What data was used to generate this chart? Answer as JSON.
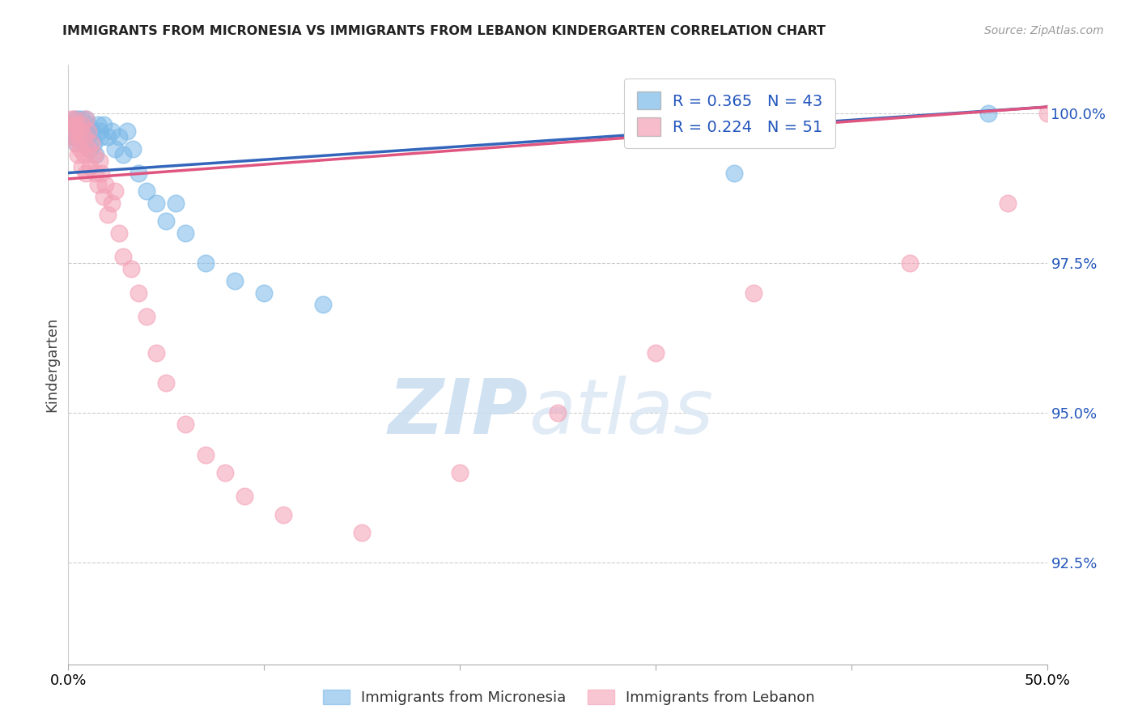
{
  "title": "IMMIGRANTS FROM MICRONESIA VS IMMIGRANTS FROM LEBANON KINDERGARTEN CORRELATION CHART",
  "source": "Source: ZipAtlas.com",
  "ylabel": "Kindergarten",
  "ytick_values": [
    0.925,
    0.95,
    0.975,
    1.0
  ],
  "xlim": [
    0.0,
    0.5
  ],
  "ylim": [
    0.908,
    1.008
  ],
  "blue_color": "#7ab8e8",
  "pink_color": "#f4a0b5",
  "blue_line_color": "#3366bb",
  "pink_line_color": "#e05580",
  "blue_R": 0.365,
  "blue_N": 43,
  "pink_R": 0.224,
  "pink_N": 51,
  "blue_scatter_x": [
    0.001,
    0.002,
    0.003,
    0.003,
    0.004,
    0.004,
    0.005,
    0.005,
    0.006,
    0.007,
    0.007,
    0.008,
    0.008,
    0.009,
    0.01,
    0.01,
    0.011,
    0.012,
    0.013,
    0.014,
    0.015,
    0.016,
    0.017,
    0.018,
    0.02,
    0.022,
    0.024,
    0.026,
    0.028,
    0.03,
    0.033,
    0.036,
    0.04,
    0.045,
    0.05,
    0.055,
    0.06,
    0.07,
    0.085,
    0.1,
    0.13,
    0.34,
    0.47
  ],
  "blue_scatter_y": [
    0.998,
    0.997,
    0.999,
    0.996,
    0.998,
    0.995,
    0.999,
    0.997,
    0.998,
    0.996,
    0.999,
    0.997,
    0.995,
    0.999,
    0.998,
    0.996,
    0.994,
    0.997,
    0.995,
    0.993,
    0.998,
    0.997,
    0.996,
    0.998,
    0.996,
    0.997,
    0.994,
    0.996,
    0.993,
    0.997,
    0.994,
    0.99,
    0.987,
    0.985,
    0.982,
    0.985,
    0.98,
    0.975,
    0.972,
    0.97,
    0.968,
    0.99,
    1.0
  ],
  "pink_scatter_x": [
    0.001,
    0.002,
    0.002,
    0.003,
    0.003,
    0.004,
    0.004,
    0.005,
    0.005,
    0.006,
    0.006,
    0.007,
    0.007,
    0.008,
    0.008,
    0.009,
    0.009,
    0.01,
    0.01,
    0.011,
    0.012,
    0.013,
    0.014,
    0.015,
    0.016,
    0.017,
    0.018,
    0.019,
    0.02,
    0.022,
    0.024,
    0.026,
    0.028,
    0.032,
    0.036,
    0.04,
    0.045,
    0.05,
    0.06,
    0.07,
    0.08,
    0.09,
    0.11,
    0.15,
    0.2,
    0.25,
    0.3,
    0.35,
    0.43,
    0.48,
    0.5
  ],
  "pink_scatter_y": [
    0.999,
    0.998,
    0.996,
    0.999,
    0.997,
    0.998,
    0.995,
    0.996,
    0.993,
    0.997,
    0.994,
    0.998,
    0.991,
    0.996,
    0.993,
    0.999,
    0.99,
    0.997,
    0.994,
    0.991,
    0.995,
    0.993,
    0.99,
    0.988,
    0.992,
    0.99,
    0.986,
    0.988,
    0.983,
    0.985,
    0.987,
    0.98,
    0.976,
    0.974,
    0.97,
    0.966,
    0.96,
    0.955,
    0.948,
    0.943,
    0.94,
    0.936,
    0.933,
    0.93,
    0.94,
    0.95,
    0.96,
    0.97,
    0.975,
    0.985,
    1.0
  ],
  "blue_line_x": [
    0.0,
    0.5
  ],
  "blue_line_y": [
    0.99,
    1.001
  ],
  "pink_line_x": [
    0.0,
    0.5
  ],
  "pink_line_y": [
    0.989,
    1.001
  ],
  "watermark_zip": "ZIP",
  "watermark_atlas": "atlas",
  "background_color": "#ffffff"
}
